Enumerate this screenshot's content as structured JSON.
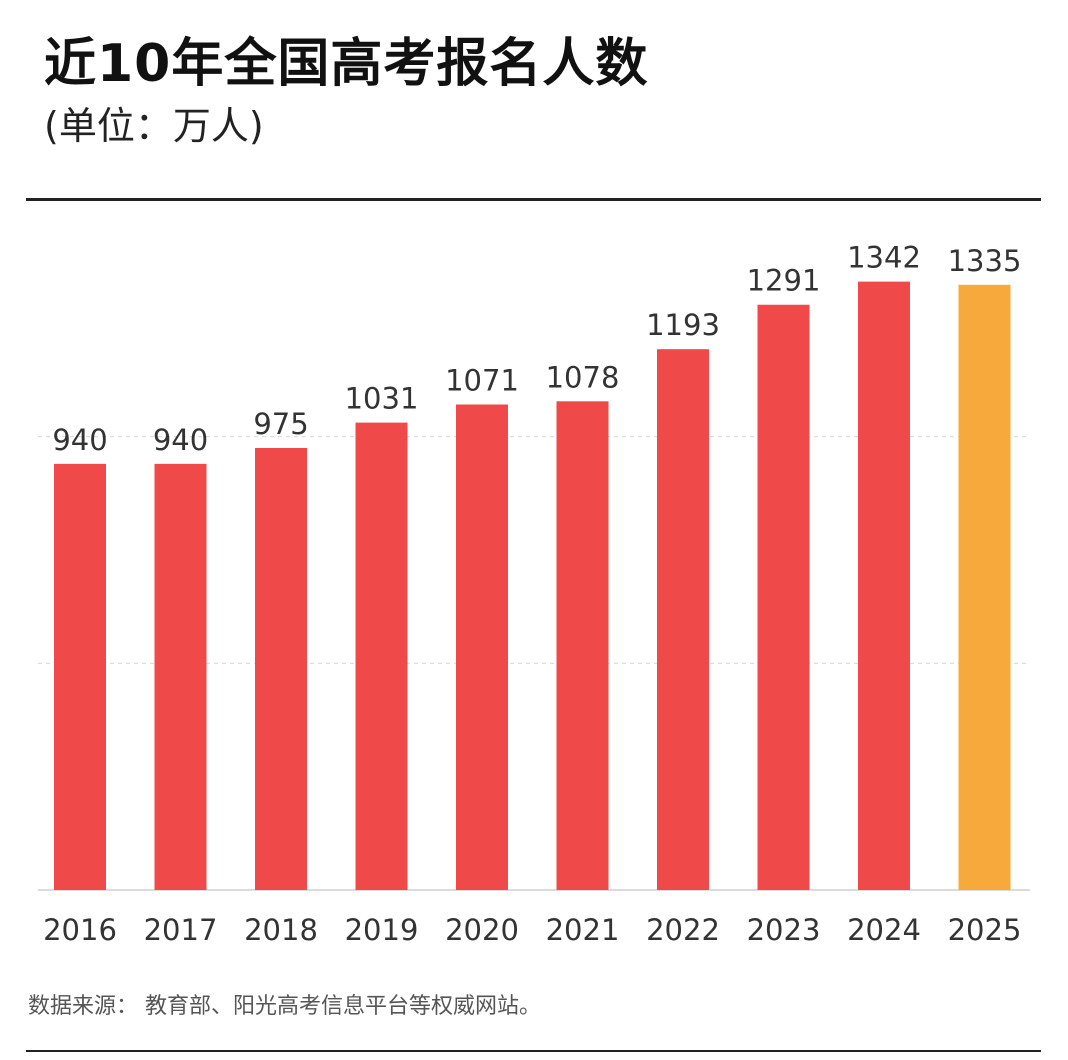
{
  "header": {
    "title": "近10年全国高考报名人数",
    "subtitle": "(单位：万人)"
  },
  "footer": {
    "source": "数据来源：  教育部、阳光高考信息平台等权威网站。"
  },
  "colors": {
    "bar": "#ef4a49",
    "highlight_bar": "#f7aa3b",
    "grid": "#d9d9d9",
    "axis": "#cfcfcf"
  },
  "chart_data": {
    "type": "bar",
    "title": "近10年全国高考报名人数",
    "subtitle": "(单位：万人)",
    "xlabel": "",
    "ylabel": "",
    "categories": [
      "2016",
      "2017",
      "2018",
      "2019",
      "2020",
      "2021",
      "2022",
      "2023",
      "2024",
      "2025"
    ],
    "values": [
      940,
      940,
      975,
      1031,
      1071,
      1078,
      1193,
      1291,
      1342,
      1335
    ],
    "highlight_category": "2025",
    "ylim": [
      0,
      1500
    ],
    "gridlines": [
      500,
      1000
    ],
    "grid": true,
    "legend": "none"
  }
}
